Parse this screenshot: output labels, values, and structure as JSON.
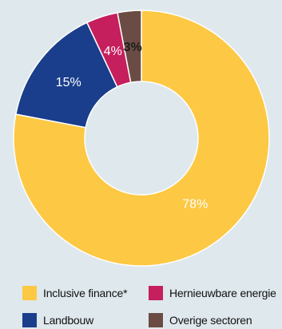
{
  "chart_data": {
    "type": "pie",
    "categories": [
      "Inclusive finance*",
      "Landbouw",
      "Hernieuwbare energie",
      "Overige sectoren"
    ],
    "values": [
      78,
      15,
      4,
      3
    ],
    "labels": [
      "78%",
      "15%",
      "4%",
      "3%"
    ],
    "colors": [
      "#fdc843",
      "#1a3e8c",
      "#c51f5d",
      "#6b4c44"
    ],
    "donut": true,
    "legend_position": "bottom"
  },
  "legend": [
    {
      "label": "Inclusive finance*",
      "color": "#fdc843"
    },
    {
      "label": "Hernieuwbare energie",
      "color": "#c51f5d"
    },
    {
      "label": "Landbouw",
      "color": "#1a3e8c"
    },
    {
      "label": "Overige sectoren",
      "color": "#6b4c44"
    }
  ]
}
